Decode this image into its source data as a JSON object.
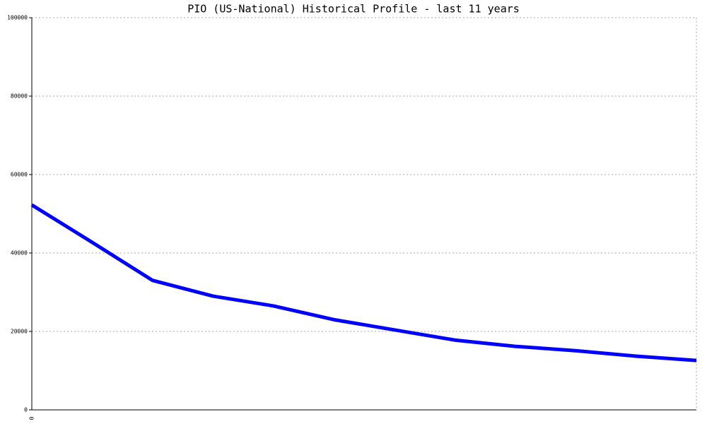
{
  "chart_data": {
    "type": "line",
    "title": "PIO (US-National) Historical Profile - last 11 years",
    "categories": [
      "0",
      null,
      null,
      null,
      null,
      null,
      null,
      null,
      null,
      null,
      null,
      null
    ],
    "series": [
      {
        "name": "PIO",
        "color": "#0000ff",
        "values": [
          52250,
          42700,
          33000,
          29000,
          26500,
          23000,
          20400,
          17800,
          16200,
          15100,
          13700,
          12600
        ]
      }
    ],
    "ylim": [
      0,
      100000
    ],
    "yticks": [
      0,
      20000,
      40000,
      60000,
      80000,
      100000
    ],
    "grid": true
  }
}
